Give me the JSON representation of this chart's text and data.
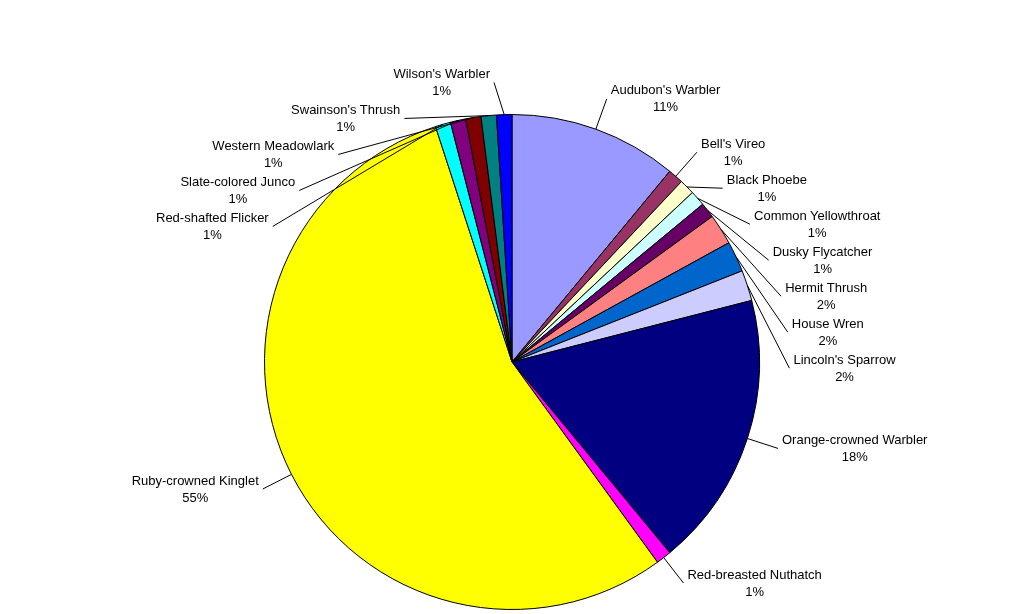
{
  "chart_data": {
    "type": "pie",
    "categories": [
      "Audubon's Warbler",
      "Bell's Vireo",
      "Black Phoebe",
      "Common Yellowthroat",
      "Dusky Flycatcher",
      "Hermit Thrush",
      "House Wren",
      "Lincoln's Sparrow",
      "Orange-crowned Warbler",
      "Red-breasted Nuthatch",
      "Ruby-crowned Kinglet",
      "Red-shafted Flicker",
      "Slate-colored Junco",
      "Western Meadowlark",
      "Swainson's Thrush",
      "Wilson's Warbler"
    ],
    "values": [
      11,
      1,
      1,
      1,
      1,
      2,
      2,
      2,
      18,
      1,
      55,
      1,
      1,
      1,
      1,
      1
    ],
    "value_labels": [
      "11%",
      "1%",
      "1%",
      "1%",
      "1%",
      "2%",
      "2%",
      "2%",
      "18%",
      "1%",
      "55%",
      "1%",
      "1%",
      "1%",
      "1%",
      "1%"
    ],
    "colors": [
      "#9999ff",
      "#993366",
      "#ffffcc",
      "#ccffff",
      "#660066",
      "#ff8080",
      "#0066cc",
      "#ccccff",
      "#000080",
      "#ff00ff",
      "#ffff00",
      "#00ffff",
      "#800080",
      "#800000",
      "#008080",
      "#0000ff"
    ],
    "legend": false
  }
}
